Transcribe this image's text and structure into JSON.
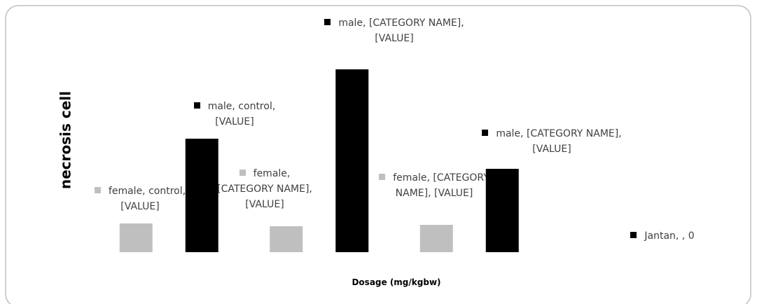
{
  "chart_data": {
    "type": "bar",
    "x_label": "Dosage (mg/kgbw)",
    "y_label": "necrosis cell",
    "categories": [
      null,
      null,
      null
    ],
    "ylim": [
      0,
      280
    ],
    "series": [
      {
        "name": "female",
        "color": "#bfbfbf",
        "values": [
          41,
          37,
          39
        ],
        "value_labels": [
          "female, control, [VALUE]",
          "female, [CATEGORY NAME], [VALUE]",
          "female, [CATEGORY NAME], [VALUE]"
        ]
      },
      {
        "name": "male",
        "color": "#000000",
        "values": [
          162,
          261,
          119
        ],
        "value_labels": [
          "male, control, [VALUE]",
          "male, [CATEGORY NAME], [VALUE]",
          "male, [CATEGORY NAME], [VALUE]"
        ]
      },
      {
        "name": "Jantan",
        "color": "#000000",
        "values": [
          null,
          null,
          0
        ],
        "value_labels": [
          null,
          null,
          "Jantan, , 0"
        ]
      }
    ]
  }
}
